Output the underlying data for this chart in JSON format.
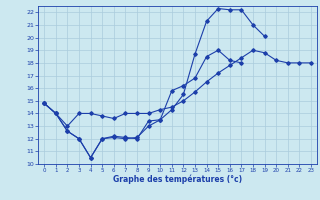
{
  "title": "Graphe des températures (°c)",
  "background_color": "#cce8f0",
  "grid_color": "#aaccdd",
  "line_color": "#1c3faa",
  "xlim": [
    -0.5,
    23.5
  ],
  "ylim": [
    10,
    22.5
  ],
  "xticks": [
    0,
    1,
    2,
    3,
    4,
    5,
    6,
    7,
    8,
    9,
    10,
    11,
    12,
    13,
    14,
    15,
    16,
    17,
    18,
    19,
    20,
    21,
    22,
    23
  ],
  "yticks": [
    10,
    11,
    12,
    13,
    14,
    15,
    16,
    17,
    18,
    19,
    20,
    21,
    22
  ],
  "series": [
    {
      "x": [
        0,
        1,
        2,
        3,
        4,
        5,
        6,
        7,
        8,
        9,
        10,
        11,
        12,
        13,
        14,
        15,
        16,
        17,
        18,
        19
      ],
      "y": [
        14.8,
        14.0,
        12.6,
        12.0,
        10.5,
        12.0,
        12.1,
        12.0,
        12.1,
        13.0,
        13.5,
        14.3,
        15.5,
        18.7,
        21.3,
        22.3,
        22.2,
        22.2,
        21.0,
        20.1
      ]
    },
    {
      "x": [
        0,
        1,
        2,
        3,
        4,
        5,
        6,
        7,
        8,
        9,
        10,
        11,
        12,
        13,
        14,
        15,
        16,
        17
      ],
      "y": [
        14.8,
        14.0,
        12.6,
        12.0,
        10.5,
        12.0,
        12.2,
        12.1,
        12.0,
        13.4,
        13.5,
        15.8,
        16.2,
        16.8,
        18.5,
        19.0,
        18.2,
        18.0
      ]
    },
    {
      "x": [
        0,
        1,
        2,
        3,
        4,
        5,
        6,
        7,
        8,
        9,
        10,
        11,
        12,
        13,
        14,
        15,
        16,
        17,
        18,
        19,
        20,
        21,
        22,
        23
      ],
      "y": [
        14.8,
        14.0,
        13.0,
        14.0,
        14.0,
        13.8,
        13.6,
        14.0,
        14.0,
        14.0,
        14.3,
        14.5,
        15.0,
        15.7,
        16.5,
        17.2,
        17.8,
        18.4,
        19.0,
        18.8,
        18.2,
        18.0,
        18.0,
        18.0
      ]
    }
  ]
}
